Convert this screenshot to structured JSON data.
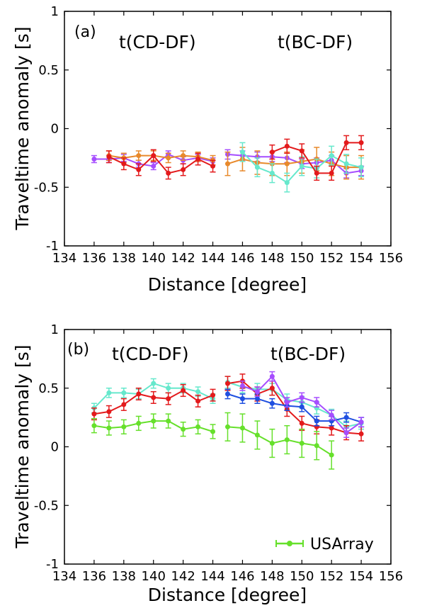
{
  "colors": {
    "purple": "#a64dff",
    "orange": "#e8892b",
    "red": "#e31a1c",
    "cyan": "#66e8cc",
    "blue": "#1f4fe0",
    "green": "#66e02b"
  },
  "chart_data": [
    {
      "type": "line",
      "panel": "(a)",
      "xlabel": "Distance [degree]",
      "ylabel": "Traveltime anomaly [s]",
      "xlim": [
        134,
        156
      ],
      "ylim": [
        -1,
        1
      ],
      "xticks": [
        "134",
        "136",
        "138",
        "140",
        "142",
        "144",
        "146",
        "148",
        "150",
        "152",
        "154",
        "156"
      ],
      "yticks": [
        "1",
        "0.5",
        "0",
        "-0.5",
        "-1"
      ],
      "grid": false,
      "annotations": [
        "t(CD-DF)",
        "t(BC-DF)"
      ],
      "series": [
        {
          "color": "purple",
          "x": [
            136,
            137,
            138,
            139,
            140,
            141,
            142,
            143,
            144
          ],
          "y": [
            -0.26,
            -0.26,
            -0.25,
            -0.3,
            -0.32,
            -0.22,
            -0.27,
            -0.25,
            -0.28
          ],
          "err": 0.03
        },
        {
          "color": "orange",
          "x": [
            137,
            138,
            139,
            140,
            141,
            142,
            143,
            144
          ],
          "y": [
            -0.23,
            -0.25,
            -0.23,
            -0.23,
            -0.25,
            -0.23,
            -0.24,
            -0.27
          ],
          "err": 0.04
        },
        {
          "color": "red",
          "x": [
            137,
            138,
            139,
            140,
            141,
            142,
            143,
            144
          ],
          "y": [
            -0.24,
            -0.3,
            -0.35,
            -0.23,
            -0.38,
            -0.35,
            -0.26,
            -0.32
          ],
          "err": 0.05
        },
        {
          "color": "purple",
          "x": [
            145,
            146,
            147,
            148,
            149,
            150,
            151,
            152,
            153,
            154
          ],
          "y": [
            -0.22,
            -0.23,
            -0.24,
            -0.24,
            -0.25,
            -0.3,
            -0.29,
            -0.27,
            -0.38,
            -0.36
          ],
          "err": 0.04
        },
        {
          "color": "orange",
          "x": [
            145,
            146,
            147,
            148,
            149,
            150,
            151,
            152,
            153,
            154
          ],
          "y": [
            -0.3,
            -0.26,
            -0.29,
            -0.3,
            -0.3,
            -0.28,
            -0.26,
            -0.3,
            -0.33,
            -0.33
          ],
          "err": 0.1
        },
        {
          "color": "cyan",
          "x": [
            146,
            147,
            148,
            149,
            150,
            151,
            152,
            153,
            154
          ],
          "y": [
            -0.2,
            -0.33,
            -0.38,
            -0.46,
            -0.32,
            -0.34,
            -0.23,
            -0.3,
            -0.33
          ],
          "err": 0.08
        },
        {
          "color": "red",
          "x": [
            148,
            149,
            150,
            151,
            152,
            153,
            154
          ],
          "y": [
            -0.2,
            -0.15,
            -0.19,
            -0.38,
            -0.38,
            -0.12,
            -0.12
          ],
          "err": 0.06
        }
      ]
    },
    {
      "type": "line",
      "panel": "(b)",
      "xlabel": "Distance [degree]",
      "ylabel": "Traveltime anomaly [s]",
      "xlim": [
        134,
        156
      ],
      "ylim": [
        -1,
        1
      ],
      "xticks": [
        "134",
        "136",
        "138",
        "140",
        "142",
        "144",
        "146",
        "148",
        "150",
        "152",
        "154",
        "156"
      ],
      "yticks": [
        "1",
        "0.5",
        "0",
        "-0.5",
        "-1"
      ],
      "grid": false,
      "annotations": [
        "t(CD-DF)",
        "t(BC-DF)"
      ],
      "legend": {
        "label": "USArray",
        "color": "green",
        "placement": "lower-right"
      },
      "series": [
        {
          "color": "cyan",
          "x": [
            136,
            137,
            138,
            139,
            140,
            141,
            142,
            143,
            144
          ],
          "y": [
            0.33,
            0.46,
            0.46,
            0.45,
            0.54,
            0.5,
            0.5,
            0.47,
            0.41
          ],
          "err": 0.04
        },
        {
          "color": "red",
          "x": [
            136,
            137,
            138,
            139,
            140,
            141,
            142,
            143,
            144
          ],
          "y": [
            0.28,
            0.3,
            0.36,
            0.45,
            0.42,
            0.41,
            0.48,
            0.39,
            0.44
          ],
          "err": 0.05
        },
        {
          "color": "green",
          "x": [
            136,
            137,
            138,
            139,
            140,
            141,
            142,
            143,
            144
          ],
          "y": [
            0.18,
            0.16,
            0.17,
            0.2,
            0.22,
            0.22,
            0.15,
            0.17,
            0.13
          ],
          "err": 0.06
        },
        {
          "color": "cyan",
          "x": [
            145,
            146,
            147,
            148,
            149,
            150,
            151,
            152,
            153,
            154
          ],
          "y": [
            0.55,
            0.51,
            0.49,
            0.49,
            0.4,
            0.38,
            0.33,
            0.27,
            0.17,
            0.2
          ],
          "err": 0.05
        },
        {
          "color": "red",
          "x": [
            145,
            146,
            147,
            148,
            149,
            150,
            151,
            152,
            153,
            154
          ],
          "y": [
            0.54,
            0.56,
            0.45,
            0.5,
            0.32,
            0.2,
            0.17,
            0.16,
            0.12,
            0.11
          ],
          "err": 0.06
        },
        {
          "color": "blue",
          "x": [
            145,
            146,
            147,
            148,
            149,
            150,
            151,
            152,
            153,
            154
          ],
          "y": [
            0.45,
            0.41,
            0.41,
            0.37,
            0.35,
            0.34,
            0.22,
            0.22,
            0.25,
            0.21
          ],
          "err": 0.04
        },
        {
          "color": "purple",
          "x": [
            146,
            147,
            148,
            149,
            150,
            151,
            152,
            153,
            154
          ],
          "y": [
            0.52,
            0.47,
            0.6,
            0.38,
            0.42,
            0.38,
            0.27,
            0.12,
            0.21
          ],
          "err": 0.04
        },
        {
          "color": "green",
          "x": [
            145,
            146,
            147,
            148,
            149,
            150,
            151,
            152
          ],
          "y": [
            0.17,
            0.16,
            0.1,
            0.03,
            0.06,
            0.03,
            0.01,
            -0.07
          ],
          "err": 0.12
        }
      ]
    }
  ]
}
